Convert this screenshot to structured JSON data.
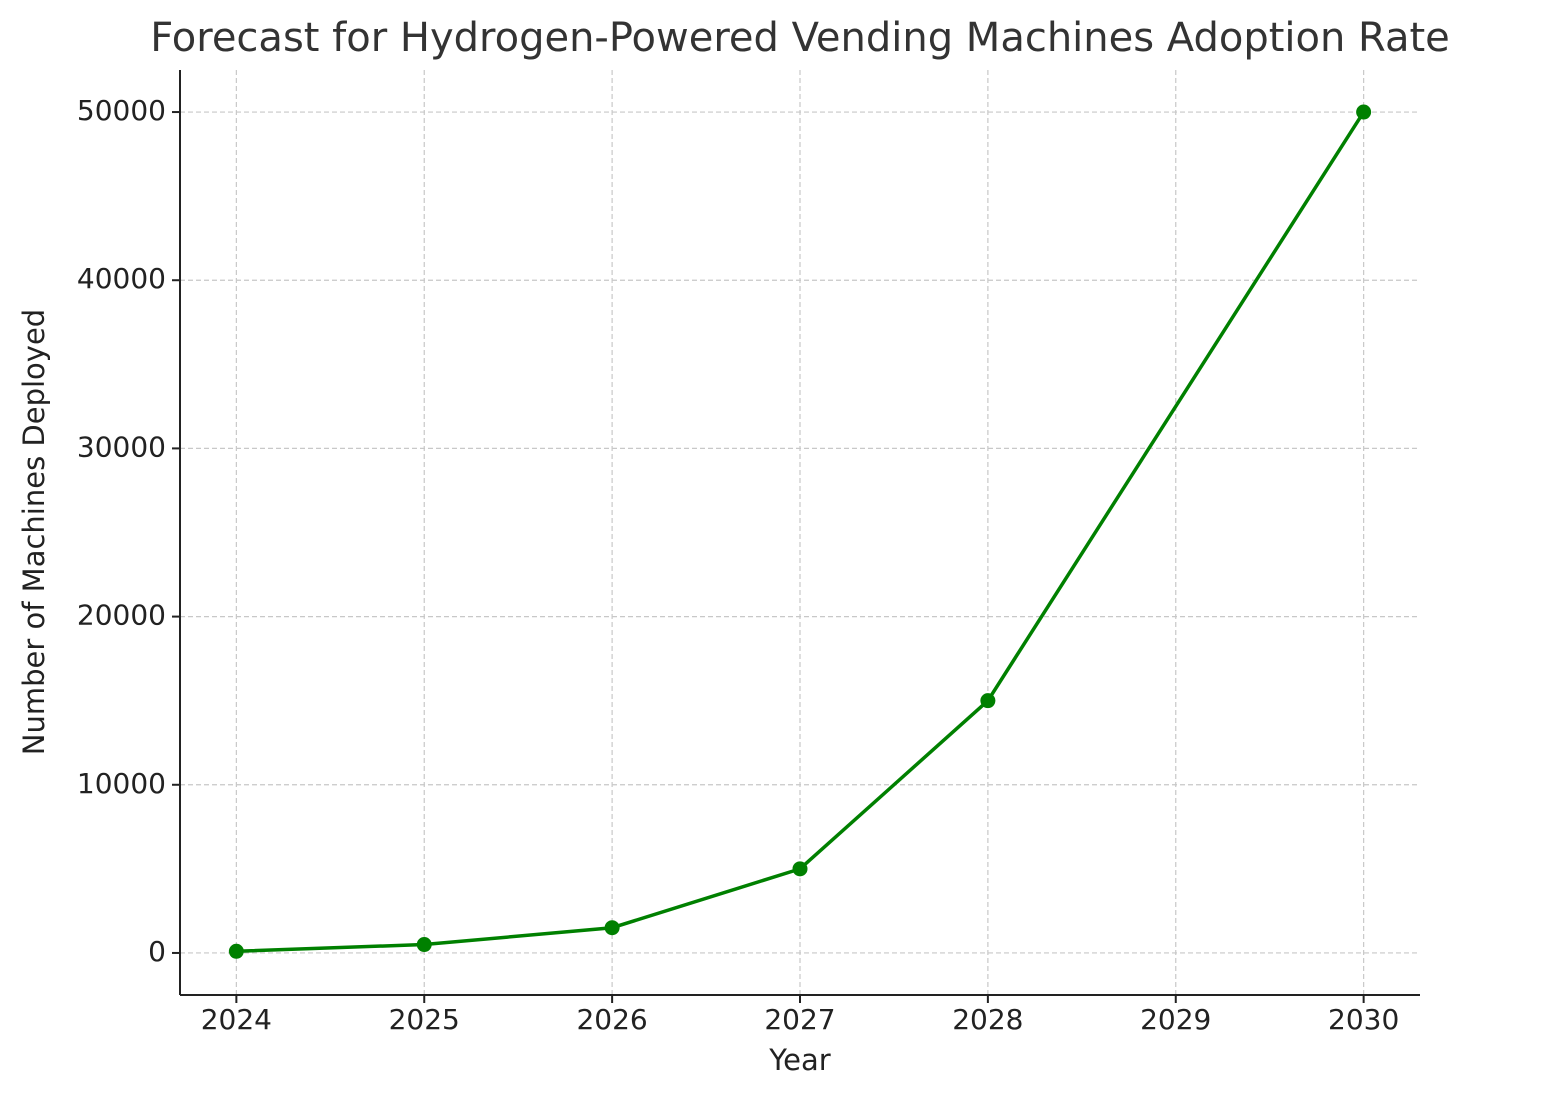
{
  "chart_data": {
    "type": "line",
    "title": "Forecast for Hydrogen-Powered Vending Machines Adoption Rate",
    "x_label": "Year",
    "y_label": "Number of Machines Deployed",
    "x": [
      2024,
      2025,
      2026,
      2027,
      2028,
      2030
    ],
    "series": [
      {
        "name": "Number of Machines Deployed",
        "color": "#008000",
        "values": [
          100,
          500,
          1500,
          5000,
          15000,
          50000
        ]
      }
    ],
    "xlim": [
      2023.7,
      2030.3
    ],
    "xticks": [
      2024,
      2025,
      2026,
      2027,
      2028,
      2029,
      2030
    ],
    "ylim": [
      -2500,
      52500
    ],
    "yticks": [
      0,
      10000,
      20000,
      30000,
      40000,
      50000
    ],
    "grid": true
  }
}
